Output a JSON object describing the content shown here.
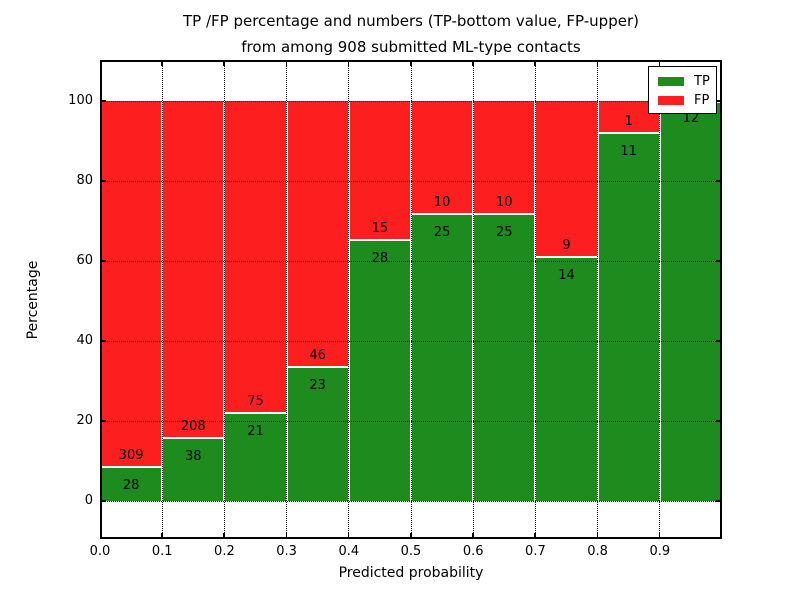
{
  "title": {
    "line1": "TP /FP percentage and numbers (TP-bottom value, FP-upper)",
    "line2": "from among 908 submitted ML-type contacts"
  },
  "axes": {
    "xlabel": "Predicted probability",
    "ylabel": "Percentage",
    "x_ticks": [
      "0.0",
      "0.1",
      "0.2",
      "0.3",
      "0.4",
      "0.5",
      "0.6",
      "0.7",
      "0.8",
      "0.9"
    ],
    "y_ticks": [
      "0",
      "20",
      "40",
      "60",
      "80",
      "100"
    ]
  },
  "legend": {
    "items": [
      {
        "label": "TP",
        "color": "#1e8b1e"
      },
      {
        "label": "FP",
        "color": "#fd1f1f"
      }
    ],
    "position": "upper right"
  },
  "colors": {
    "tp": "#1e8b1e",
    "fp": "#fd1f1f",
    "grid": "#000000",
    "background": "#ffffff"
  },
  "chart_data": {
    "type": "bar",
    "stacked": true,
    "normalized": "each bin scaled to 100%",
    "title": "TP /FP percentage and numbers (TP-bottom value, FP-upper) from among 908 submitted ML-type contacts",
    "xlabel": "Predicted probability",
    "ylabel": "Percentage",
    "total_contacts": 908,
    "categories": [
      "0.0-0.1",
      "0.1-0.2",
      "0.2-0.3",
      "0.3-0.4",
      "0.4-0.5",
      "0.5-0.6",
      "0.6-0.7",
      "0.7-0.8",
      "0.8-0.9",
      "0.9-1.0"
    ],
    "bin_start": [
      0.0,
      0.1,
      0.2,
      0.3,
      0.4,
      0.5,
      0.6,
      0.7,
      0.8,
      0.9
    ],
    "bin_width": 0.1,
    "series": [
      {
        "name": "TP",
        "color": "#1e8b1e",
        "counts": [
          28,
          38,
          21,
          23,
          28,
          25,
          25,
          14,
          11,
          12
        ]
      },
      {
        "name": "FP",
        "color": "#fd1f1f",
        "counts": [
          309,
          208,
          75,
          46,
          15,
          10,
          10,
          9,
          1,
          0
        ]
      }
    ],
    "xlim": [
      0.0,
      1.0
    ],
    "ylim": [
      -10,
      110
    ],
    "grid": "dotted black, both axes",
    "legend_position": "upper right"
  }
}
